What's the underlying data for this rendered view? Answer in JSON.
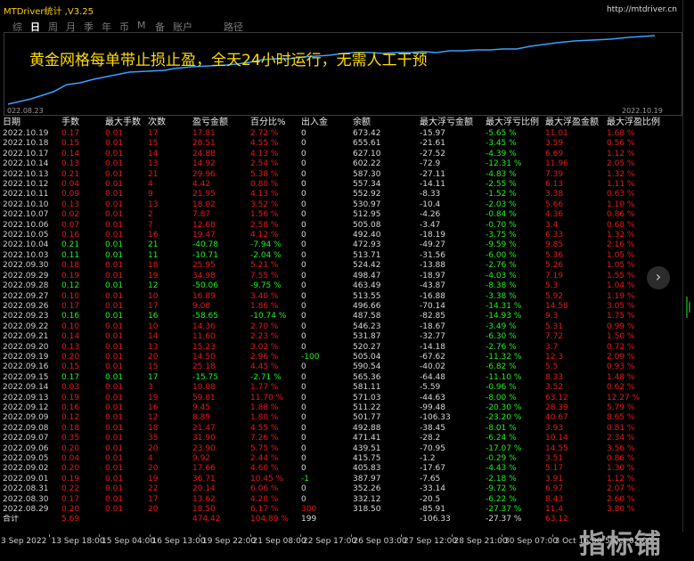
{
  "window": {
    "title": "MTDriver统计 ,V3.25",
    "url": "http://mtdriver.cn"
  },
  "tabs": [
    "综",
    "日",
    "周",
    "月",
    "季",
    "年",
    "币",
    "M",
    "备",
    "账户"
  ],
  "active_tab": "日",
  "path_tab": "路径",
  "slogan": "黄金网格每单带止损止盈，全天24小时运行，无需人工干预",
  "equity_chart": {
    "start_label": "022.08.23",
    "end_label": "2022.10.19",
    "line_color": "#3aa0ff"
  },
  "table": {
    "headers": [
      "日期",
      "手数",
      "最大手数",
      "次数",
      "盈亏金额",
      "百分比%",
      "出入金",
      "余额",
      "最大浮亏金额",
      "最大浮亏比例",
      "最大浮盈金额",
      "最大浮盈比例"
    ],
    "rows": [
      {
        "date": "2022.10.19",
        "lots": "0.17",
        "max_lots": "0.01",
        "count": "17",
        "pnl": "17.81",
        "pct": "2.72 %",
        "io": "0",
        "bal": "673.42",
        "fl": "-15.97",
        "flp": "-5.65 %",
        "fp": "11.01",
        "fpp": "1.68 %",
        "win": false
      },
      {
        "date": "2022.10.18",
        "lots": "0.15",
        "max_lots": "0.01",
        "count": "15",
        "pnl": "28.51",
        "pct": "4.55 %",
        "io": "0",
        "bal": "655.61",
        "fl": "-21.61",
        "flp": "-3.45 %",
        "fp": "3.59",
        "fpp": "0.56 %",
        "win": false
      },
      {
        "date": "2022.10.17",
        "lots": "0.14",
        "max_lots": "0.01",
        "count": "14",
        "pnl": "24.88",
        "pct": "4.13 %",
        "io": "0",
        "bal": "627.10",
        "fl": "-27.52",
        "flp": "-4.39 %",
        "fp": "6.69",
        "fpp": "1.12 %",
        "win": false
      },
      {
        "date": "2022.10.14",
        "lots": "0.13",
        "max_lots": "0.01",
        "count": "13",
        "pnl": "14.92",
        "pct": "2.54 %",
        "io": "0",
        "bal": "602.22",
        "fl": "-72.9",
        "flp": "-12.31 %",
        "fp": "11.96",
        "fpp": "2.05 %",
        "win": false
      },
      {
        "date": "2022.10.13",
        "lots": "0.21",
        "max_lots": "0.01",
        "count": "21",
        "pnl": "29.96",
        "pct": "5.38 %",
        "io": "0",
        "bal": "587.30",
        "fl": "-27.11",
        "flp": "-4.83 %",
        "fp": "7.39",
        "fpp": "1.32 %",
        "win": false
      },
      {
        "date": "2022.10.12",
        "lots": "0.04",
        "max_lots": "0.01",
        "count": "4",
        "pnl": "4.42",
        "pct": "0.80 %",
        "io": "0",
        "bal": "557.34",
        "fl": "-14.11",
        "flp": "-2.55 %",
        "fp": "6.13",
        "fpp": "1.11 %",
        "win": false
      },
      {
        "date": "2022.10.11",
        "lots": "0.09",
        "max_lots": "0.01",
        "count": "9",
        "pnl": "21.95",
        "pct": "4.13 %",
        "io": "0",
        "bal": "552.92",
        "fl": "-8.33",
        "flp": "-1.52 %",
        "fp": "3.38",
        "fpp": "0.63 %",
        "win": false
      },
      {
        "date": "2022.10.10",
        "lots": "0.13",
        "max_lots": "0.01",
        "count": "13",
        "pnl": "18.02",
        "pct": "3.52 %",
        "io": "0",
        "bal": "530.97",
        "fl": "-10.4",
        "flp": "-2.03 %",
        "fp": "5.66",
        "fpp": "1.10 %",
        "win": false
      },
      {
        "date": "2022.10.07",
        "lots": "0.02",
        "max_lots": "0.01",
        "count": "2",
        "pnl": "7.87",
        "pct": "1.56 %",
        "io": "0",
        "bal": "512.95",
        "fl": "-4.26",
        "flp": "-0.84 %",
        "fp": "4.36",
        "fpp": "0.86 %",
        "win": false
      },
      {
        "date": "2022.10.06",
        "lots": "0.07",
        "max_lots": "0.01",
        "count": "7",
        "pnl": "12.68",
        "pct": "2.58 %",
        "io": "0",
        "bal": "505.08",
        "fl": "-3.47",
        "flp": "-0.70 %",
        "fp": "3.4",
        "fpp": "0.68 %",
        "win": false
      },
      {
        "date": "2022.10.05",
        "lots": "0.16",
        "max_lots": "0.01",
        "count": "16",
        "pnl": "19.47",
        "pct": "4.12 %",
        "io": "0",
        "bal": "492.40",
        "fl": "-18.19",
        "flp": "-3.75 %",
        "fp": "6.33",
        "fpp": "1.32 %",
        "win": false
      },
      {
        "date": "2022.10.04",
        "lots": "0.21",
        "max_lots": "0.01",
        "count": "21",
        "pnl": "-40.78",
        "pct": "-7.94 %",
        "io": "0",
        "bal": "472.93",
        "fl": "-49.27",
        "flp": "-9.59 %",
        "fp": "9.85",
        "fpp": "2.16 %",
        "win": true
      },
      {
        "date": "2022.10.03",
        "lots": "0.11",
        "max_lots": "0.01",
        "count": "11",
        "pnl": "-10.71",
        "pct": "-2.04 %",
        "io": "0",
        "bal": "513.71",
        "fl": "-31.56",
        "flp": "-6.00 %",
        "fp": "5.36",
        "fpp": "1.05 %",
        "win": true
      },
      {
        "date": "2022.09.30",
        "lots": "0.18",
        "max_lots": "0.01",
        "count": "18",
        "pnl": "25.95",
        "pct": "5.21 %",
        "io": "0",
        "bal": "524.42",
        "fl": "-13.88",
        "flp": "-2.76 %",
        "fp": "5.26",
        "fpp": "1.05 %",
        "win": false
      },
      {
        "date": "2022.09.29",
        "lots": "0.19",
        "max_lots": "0.01",
        "count": "19",
        "pnl": "34.98",
        "pct": "7.55 %",
        "io": "0",
        "bal": "498.47",
        "fl": "-18.97",
        "flp": "-4.03 %",
        "fp": "7.19",
        "fpp": "1.55 %",
        "win": false
      },
      {
        "date": "2022.09.28",
        "lots": "0.12",
        "max_lots": "0.01",
        "count": "12",
        "pnl": "-50.06",
        "pct": "-9.75 %",
        "io": "0",
        "bal": "463.49",
        "fl": "-43.87",
        "flp": "-8.38 %",
        "fp": "5.3",
        "fpp": "1.04 %",
        "win": true
      },
      {
        "date": "2022.09.27",
        "lots": "0.10",
        "max_lots": "0.01",
        "count": "10",
        "pnl": "16.89",
        "pct": "3.40 %",
        "io": "0",
        "bal": "513.55",
        "fl": "-16.88",
        "flp": "-3.38 %",
        "fp": "5.92",
        "fpp": "1.19 %",
        "win": false
      },
      {
        "date": "2022.09.26",
        "lots": "0.17",
        "max_lots": "0.01",
        "count": "17",
        "pnl": "9.08",
        "pct": "1.86 %",
        "io": "0",
        "bal": "496.66",
        "fl": "-70.14",
        "flp": "-14.31 %",
        "fp": "14.58",
        "fpp": "3.05 %",
        "win": false
      },
      {
        "date": "2022.09.23",
        "lots": "0.16",
        "max_lots": "0.01",
        "count": "16",
        "pnl": "-58.65",
        "pct": "-10.74 %",
        "io": "0",
        "bal": "487.58",
        "fl": "-82.85",
        "flp": "-14.93 %",
        "fp": "9.3",
        "fpp": "1.75 %",
        "win": true
      },
      {
        "date": "2022.09.22",
        "lots": "0.10",
        "max_lots": "0.01",
        "count": "10",
        "pnl": "14.36",
        "pct": "2.70 %",
        "io": "0",
        "bal": "546.23",
        "fl": "-18.67",
        "flp": "-3.49 %",
        "fp": "5.31",
        "fpp": "0.99 %",
        "win": false
      },
      {
        "date": "2022.09.21",
        "lots": "0.14",
        "max_lots": "0.01",
        "count": "14",
        "pnl": "11.60",
        "pct": "2.23 %",
        "io": "0",
        "bal": "531.87",
        "fl": "-32.77",
        "flp": "-6.30 %",
        "fp": "7.72",
        "fpp": "1.50 %",
        "win": false
      },
      {
        "date": "2022.09.20",
        "lots": "0.13",
        "max_lots": "0.01",
        "count": "13",
        "pnl": "15.23",
        "pct": "3.02 %",
        "io": "0",
        "bal": "520.27",
        "fl": "-14.18",
        "flp": "-2.76 %",
        "fp": "3.7",
        "fpp": "0.72 %",
        "win": false
      },
      {
        "date": "2022.09.19",
        "lots": "0.20",
        "max_lots": "0.01",
        "count": "20",
        "pnl": "14.50",
        "pct": "2.96 %",
        "io": "-100",
        "bal": "505.04",
        "fl": "-67.62",
        "flp": "-11.32 %",
        "fp": "12.3",
        "fpp": "2.09 %",
        "win": false
      },
      {
        "date": "2022.09.16",
        "lots": "0.15",
        "max_lots": "0.01",
        "count": "15",
        "pnl": "25.18",
        "pct": "4.45 %",
        "io": "0",
        "bal": "590.54",
        "fl": "-40.02",
        "flp": "-6.82 %",
        "fp": "5.5",
        "fpp": "0.93 %",
        "win": false
      },
      {
        "date": "2022.09.15",
        "lots": "0.17",
        "max_lots": "0.01",
        "count": "17",
        "pnl": "-15.75",
        "pct": "-2.71 %",
        "io": "0",
        "bal": "565.36",
        "fl": "-64.48",
        "flp": "-11.10 %",
        "fp": "8.33",
        "fpp": "1.48 %",
        "win": true
      },
      {
        "date": "2022.09.14",
        "lots": "0.03",
        "max_lots": "0.01",
        "count": "3",
        "pnl": "10.08",
        "pct": "1.77 %",
        "io": "0",
        "bal": "581.11",
        "fl": "-5.59",
        "flp": "-0.96 %",
        "fp": "3.52",
        "fpp": "0.62 %",
        "win": false
      },
      {
        "date": "2022.09.13",
        "lots": "0.19",
        "max_lots": "0.01",
        "count": "19",
        "pnl": "59.81",
        "pct": "11.70 %",
        "io": "0",
        "bal": "571.03",
        "fl": "-44.63",
        "flp": "-8.00 %",
        "fp": "63.12",
        "fpp": "12.27 %",
        "win": false
      },
      {
        "date": "2022.09.12",
        "lots": "0.16",
        "max_lots": "0.01",
        "count": "16",
        "pnl": "9.45",
        "pct": "1.88 %",
        "io": "0",
        "bal": "511.22",
        "fl": "-99.48",
        "flp": "-20.30 %",
        "fp": "28.39",
        "fpp": "5.79 %",
        "win": false
      },
      {
        "date": "2022.09.09",
        "lots": "0.12",
        "max_lots": "0.01",
        "count": "12",
        "pnl": "8.89",
        "pct": "1.80 %",
        "io": "0",
        "bal": "501.77",
        "fl": "-106.33",
        "flp": "-23.20 %",
        "fp": "40.67",
        "fpp": "8.65 %",
        "win": false
      },
      {
        "date": "2022.09.08",
        "lots": "0.18",
        "max_lots": "0.01",
        "count": "18",
        "pnl": "21.47",
        "pct": "4.55 %",
        "io": "0",
        "bal": "492.88",
        "fl": "-38.45",
        "flp": "-8.01 %",
        "fp": "3.93",
        "fpp": "0.81 %",
        "win": false
      },
      {
        "date": "2022.09.07",
        "lots": "0.35",
        "max_lots": "0.01",
        "count": "35",
        "pnl": "31.90",
        "pct": "7.26 %",
        "io": "0",
        "bal": "471.41",
        "fl": "-28.2",
        "flp": "-6.24 %",
        "fp": "10.14",
        "fpp": "2.34 %",
        "win": false
      },
      {
        "date": "2022.09.06",
        "lots": "0.20",
        "max_lots": "0.01",
        "count": "20",
        "pnl": "23.90",
        "pct": "5.75 %",
        "io": "0",
        "bal": "439.51",
        "fl": "-70.95",
        "flp": "-17.07 %",
        "fp": "14.55",
        "fpp": "3.56 %",
        "win": false
      },
      {
        "date": "2022.09.05",
        "lots": "0.04",
        "max_lots": "0.01",
        "count": "4",
        "pnl": "9.92",
        "pct": "2.44 %",
        "io": "0",
        "bal": "415.75",
        "fl": "-1.2",
        "flp": "-0.29 %",
        "fp": "3.51",
        "fpp": "0.86 %",
        "win": false
      },
      {
        "date": "2022.09.02",
        "lots": "0.20",
        "max_lots": "0.01",
        "count": "20",
        "pnl": "17.66",
        "pct": "4.60 %",
        "io": "0",
        "bal": "405.83",
        "fl": "-17.67",
        "flp": "-4.43 %",
        "fp": "5.17",
        "fpp": "1.30 %",
        "win": false
      },
      {
        "date": "2022.09.01",
        "lots": "0.19",
        "max_lots": "0.01",
        "count": "19",
        "pnl": "36.71",
        "pct": "10.45 %",
        "io": "-1",
        "bal": "387.97",
        "fl": "-7.65",
        "flp": "-2.18 %",
        "fp": "3.91",
        "fpp": "1.12 %",
        "win": false
      },
      {
        "date": "2022.08.31",
        "lots": "0.22",
        "max_lots": "0.01",
        "count": "22",
        "pnl": "20.14",
        "pct": "6.06 %",
        "io": "0",
        "bal": "352.26",
        "fl": "-33.14",
        "flp": "-9.72 %",
        "fp": "6.97",
        "fpp": "2.07 %",
        "win": false
      },
      {
        "date": "2022.08.30",
        "lots": "0.17",
        "max_lots": "0.01",
        "count": "17",
        "pnl": "13.62",
        "pct": "4.28 %",
        "io": "0",
        "bal": "332.12",
        "fl": "-20.5",
        "flp": "-6.22 %",
        "fp": "8.43",
        "fpp": "2.60 %",
        "win": false
      },
      {
        "date": "2022.08.29",
        "lots": "0.20",
        "max_lots": "0.01",
        "count": "20",
        "pnl": "18.50",
        "pct": "6.17 %",
        "io": "300",
        "bal": "318.50",
        "fl": "-85.91",
        "flp": "-27.37 %",
        "fp": "11.4",
        "fpp": "3.80 %",
        "win": false
      }
    ],
    "total": {
      "date": "合计",
      "lots": "5.69",
      "max_lots": "",
      "count": "",
      "pnl": "474.42",
      "pct": "104.89 %",
      "io": "199",
      "bal": "",
      "fl": "-106.33",
      "flp": "-27.37 %",
      "fp": "63.12",
      "fpp": ""
    }
  },
  "next_button": "›",
  "timebar": [
    "3 Sep 2022",
    "13 Sep 18:00",
    "15 Sep 04:00",
    "16 Sep 13:00",
    "19 Sep 22:00",
    "21 Sep 08:00",
    "22 Sep 17:00",
    "26 Sep 03:00",
    "27 Sep 12:00",
    "28 Sep 21:00",
    "30 Sep 07:00",
    "3 Oct 16:00",
    "5 Oct 02:00"
  ],
  "watermark": "指标铺",
  "colors": {
    "loss": "#e81818",
    "win": "#22ee22",
    "title": "#ffcc00",
    "slogan": "#ffdd00"
  }
}
